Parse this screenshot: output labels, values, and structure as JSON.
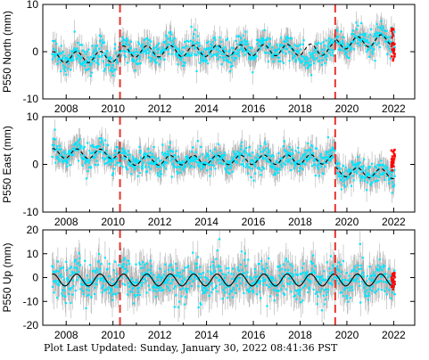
{
  "chart_data": [
    {
      "type": "scatter",
      "ylabel": "P550 North (mm)",
      "xlim": [
        2007.0,
        2022.9
      ],
      "ylim": [
        -10,
        10
      ],
      "yticks": [
        -10,
        0,
        10
      ],
      "xticks": [
        2008,
        2010,
        2012,
        2014,
        2016,
        2018,
        2020,
        2022
      ],
      "data_span": [
        2007.4,
        2022.05
      ],
      "events": [
        2010.3,
        2019.5
      ],
      "series": [
        {
          "kind": "daily-error-bars",
          "color": "#b0b0b0",
          "sigma": 2.0
        },
        {
          "kind": "daily-positions",
          "color": "#00e5ff"
        },
        {
          "kind": "recent-rapid-positions",
          "color": "#ff0000",
          "x_range": [
            2021.9,
            2022.05
          ],
          "y_range": [
            -2,
            5
          ]
        },
        {
          "kind": "model-fit",
          "color": "#000000",
          "style": "dashed"
        }
      ],
      "model": {
        "segments": [
          {
            "from": 2007.4,
            "to": 2010.3,
            "offset": -1.2,
            "trend": 0.05
          },
          {
            "from": 2010.3,
            "to": 2019.5,
            "offset": 0.0,
            "trend": 0.05
          },
          {
            "from": 2019.5,
            "to": 2022.05,
            "offset": 1.6,
            "trend": 0.4
          }
        ],
        "annual_amplitude": 1.2
      },
      "scatter_spread": 1.4,
      "dip": {
        "x_range": [
          2018.1,
          2018.7
        ],
        "depth": -4
      }
    },
    {
      "type": "scatter",
      "ylabel": "P550 East (mm)",
      "xlim": [
        2007.0,
        2022.9
      ],
      "ylim": [
        -10,
        10
      ],
      "yticks": [
        -10,
        0,
        10
      ],
      "xticks": [
        2008,
        2010,
        2012,
        2014,
        2016,
        2018,
        2020,
        2022
      ],
      "data_span": [
        2007.4,
        2022.05
      ],
      "events": [
        2010.3,
        2019.5
      ],
      "series": [
        {
          "kind": "daily-error-bars",
          "color": "#b0b0b0",
          "sigma": 2.0
        },
        {
          "kind": "daily-positions",
          "color": "#00e5ff"
        },
        {
          "kind": "recent-rapid-positions",
          "color": "#ff0000",
          "x_range": [
            2021.9,
            2022.05
          ],
          "y_range": [
            -1.5,
            3.5
          ]
        },
        {
          "kind": "model-fit",
          "color": "#000000",
          "style": "dashed"
        }
      ],
      "model": {
        "segments": [
          {
            "from": 2007.4,
            "to": 2010.3,
            "offset": 2.3,
            "trend": -0.05
          },
          {
            "from": 2010.3,
            "to": 2019.5,
            "offset": 0.8,
            "trend": 0.03
          },
          {
            "from": 2019.5,
            "to": 2022.05,
            "offset": -1.5,
            "trend": -0.2
          }
        ],
        "annual_amplitude": 1.0
      },
      "scatter_spread": 1.3
    },
    {
      "type": "scatter",
      "ylabel": "P550 Up (mm)",
      "xlim": [
        2007.0,
        2022.9
      ],
      "ylim": [
        -20,
        20
      ],
      "yticks": [
        -20,
        -10,
        0,
        10,
        20
      ],
      "xticks": [
        2008,
        2010,
        2012,
        2014,
        2016,
        2018,
        2020,
        2022
      ],
      "data_span": [
        2007.4,
        2022.05
      ],
      "events": [
        2010.3,
        2019.5
      ],
      "series": [
        {
          "kind": "daily-error-bars",
          "color": "#b0b0b0",
          "sigma": 5.5
        },
        {
          "kind": "daily-positions",
          "color": "#00e5ff"
        },
        {
          "kind": "recent-rapid-positions",
          "color": "#ff0000",
          "x_range": [
            2021.9,
            2022.05
          ],
          "y_range": [
            -5,
            2
          ]
        },
        {
          "kind": "model-fit",
          "color": "#000000",
          "style": "solid"
        }
      ],
      "model": {
        "segments": [
          {
            "from": 2007.4,
            "to": 2022.05,
            "offset": -1.0,
            "trend": 0.0
          }
        ],
        "annual_amplitude": 2.5
      },
      "scatter_spread": 4.0
    }
  ],
  "footer": "Plot Last Updated:   Sunday, January 30, 2022 08:41:36 PST",
  "colors": {
    "event_line": "#e8342c",
    "axis": "#000000"
  }
}
